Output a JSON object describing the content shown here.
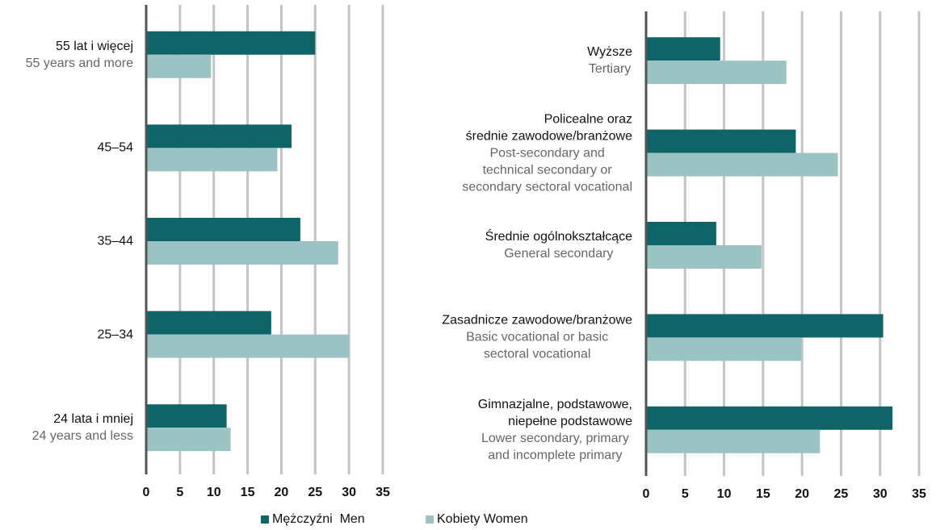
{
  "chart_data": [
    {
      "type": "bar",
      "orientation": "horizontal",
      "categories": [
        "55 lat i więcej",
        "45–54",
        "35–44",
        "25–34",
        "24 lata i mniej"
      ],
      "categories_en": [
        "55 years and more",
        null,
        null,
        null,
        "24 years and less"
      ],
      "series": [
        {
          "name": "Mężczyźni  Men",
          "color": "#0e6466",
          "values": [
            25.0,
            21.5,
            22.8,
            18.5,
            11.9
          ]
        },
        {
          "name": "Kobiety Women",
          "color": "#9cc3c3",
          "values": [
            9.6,
            19.4,
            28.4,
            30.0,
            12.5
          ]
        }
      ],
      "xlim": [
        0,
        35
      ],
      "xticks": [
        0,
        5,
        10,
        15,
        20,
        25,
        30,
        35
      ],
      "grid": true
    },
    {
      "type": "bar",
      "orientation": "horizontal",
      "categories": [
        "Wyższe",
        "Policealne oraz\nśrednie zawodowe/branżowe",
        "Średnie ogólnokształcące",
        "Zasadnicze zawodowe/branżowe",
        "Gimnazjalne, podstawowe,\nniepełne podstawowe"
      ],
      "categories_en": [
        "Tertiary",
        "Post-secondary and\ntechnical secondary or\nsecondary sectoral vocational",
        "General secondary",
        "Basic vocational or basic\nsectoral vocational",
        "Lower secondary, primary\nand incomplete primary"
      ],
      "series": [
        {
          "name": "Mężczyźni  Men",
          "color": "#0e6466",
          "values": [
            9.5,
            19.2,
            9.0,
            30.4,
            31.6
          ]
        },
        {
          "name": "Kobiety Women",
          "color": "#9cc3c3",
          "values": [
            18.0,
            24.6,
            14.8,
            19.9,
            22.3
          ]
        }
      ],
      "xlim": [
        0,
        35
      ],
      "xticks": [
        0,
        5,
        10,
        15,
        20,
        25,
        30,
        35
      ],
      "grid": true
    }
  ]
}
